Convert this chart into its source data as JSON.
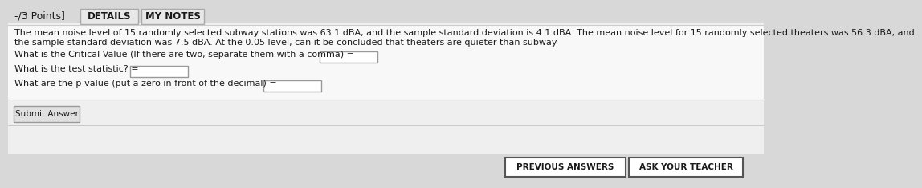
{
  "background_color": "#d8d8d8",
  "content_bg": "#f0f0f0",
  "header_text": "-/3 Points]",
  "tab1": "DETAILS",
  "tab2": "MY NOTES",
  "line1": "The mean noise level of 15 randomly selected subway stations was 63.1 dBA, and the sample standard deviation is 4.1 dBA. The mean noise level for 15 randomly selected theaters was 56.3 dBA, and",
  "line2": "the sample standard deviation was 7.5 dBA. At the 0.05 level, can it be concluded that theaters are quieter than subway",
  "q1": "What is the Critical Value (If there are two, separate them with a comma) =",
  "q2": "What is the test statistic? =",
  "q3": "What are the p-value (put a zero in front of the decimal) =",
  "submit_btn": "Submit Answer",
  "prev_btn": "PREVIOUS ANSWERS",
  "teacher_btn": "ASK YOUR TEACHER",
  "font_size_body": 8.0,
  "font_size_small": 7.5,
  "text_color": "#1a1a1a",
  "tab_bg": "#e8e8e8",
  "tab_border": "#aaaaaa",
  "box_color": "#ffffff",
  "box_edge": "#999999",
  "white_panel_bg": "#f5f5f5",
  "separator_color": "#cccccc"
}
